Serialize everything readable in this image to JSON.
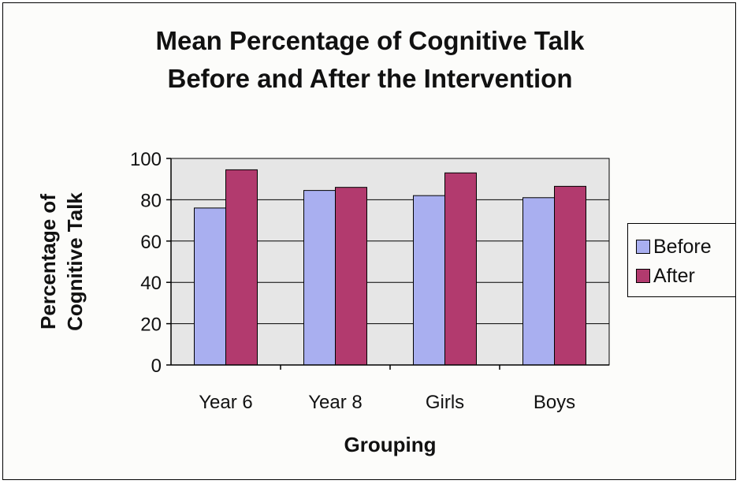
{
  "chart_data": {
    "type": "bar",
    "title_line1": "Mean Percentage of Cognitive Talk",
    "title_line2": "Before and After the Intervention",
    "categories": [
      "Year 6",
      "Year 8",
      "Girls",
      "Boys"
    ],
    "series": [
      {
        "name": "Before",
        "values": [
          76,
          84.5,
          82,
          81
        ],
        "color": "#a9aff0"
      },
      {
        "name": "After",
        "values": [
          94.5,
          86,
          93,
          86.5
        ],
        "color": "#b23a6e"
      }
    ],
    "xlabel": "Grouping",
    "ylabel_line1": "Percentage of",
    "ylabel_line2": "Cognitive Talk",
    "ylim": [
      0,
      100
    ],
    "yticks": [
      "0",
      "20",
      "40",
      "60",
      "80",
      "100"
    ],
    "grid": true,
    "legend_position": "right",
    "plot_background": "#e6e6e6"
  }
}
